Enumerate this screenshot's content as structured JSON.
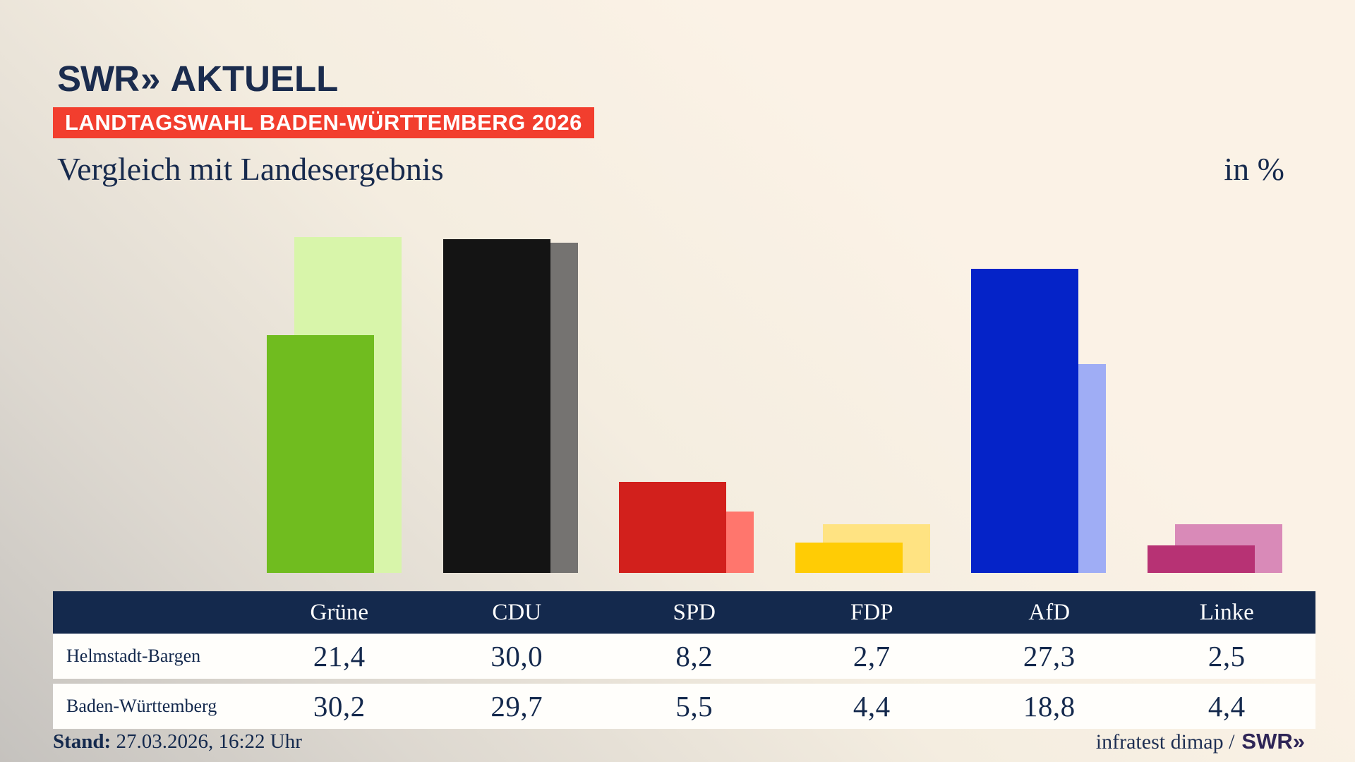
{
  "brand": {
    "swr": "SWR",
    "chevrons": "»",
    "aktuell": "AKTUELL"
  },
  "badge": {
    "label": "LANDTAGSWAHL BADEN-WÜRTTEMBERG 2026",
    "bg": "#f23e2e",
    "fg": "#ffffff"
  },
  "headline": {
    "title": "Vergleich mit Landesergebnis",
    "unit": "in %"
  },
  "chart_data": {
    "type": "bar",
    "title": "Vergleich mit Landesergebnis",
    "unit": "in %",
    "categories": [
      "Grüne",
      "CDU",
      "SPD",
      "FDP",
      "AfD",
      "Linke"
    ],
    "series": [
      {
        "name": "Helmstadt-Bargen",
        "role": "front",
        "values": [
          21.4,
          30.0,
          8.2,
          2.7,
          27.3,
          2.5
        ],
        "value_labels": [
          "21,4",
          "30,0",
          "8,2",
          "2,7",
          "27,3",
          "2,5"
        ],
        "colors": [
          "#70bc1f",
          "#141414",
          "#d2201c",
          "#ffcc05",
          "#0523c8",
          "#b73274"
        ]
      },
      {
        "name": "Baden-Württemberg",
        "role": "back",
        "values": [
          30.2,
          29.7,
          5.5,
          4.4,
          18.8,
          4.4
        ],
        "value_labels": [
          "30,2",
          "29,7",
          "5,5",
          "4,4",
          "18,8",
          "4,4"
        ],
        "colors": [
          "#d8f5aa",
          "#757371",
          "#ff766d",
          "#ffe382",
          "#9fadf5",
          "#d98ab8"
        ]
      }
    ],
    "ylim": [
      0,
      32
    ],
    "grid": false,
    "axes_shown": false,
    "legend_position": "table-below"
  },
  "table": {
    "rows": [
      {
        "label": "Helmstadt-Bargen",
        "values": [
          "21,4",
          "30,0",
          "8,2",
          "2,7",
          "27,3",
          "2,5"
        ]
      },
      {
        "label": "Baden-Württemberg",
        "values": [
          "30,2",
          "29,7",
          "5,5",
          "4,4",
          "18,8",
          "4,4"
        ]
      }
    ],
    "header_bg": "#14294d"
  },
  "footer": {
    "stand_label": "Stand:",
    "stand_value": " 27.03.2026, 16:22 Uhr",
    "source_text": "infratest dimap /",
    "source_brand_swr": "SWR",
    "source_brand_chevrons": "»"
  }
}
